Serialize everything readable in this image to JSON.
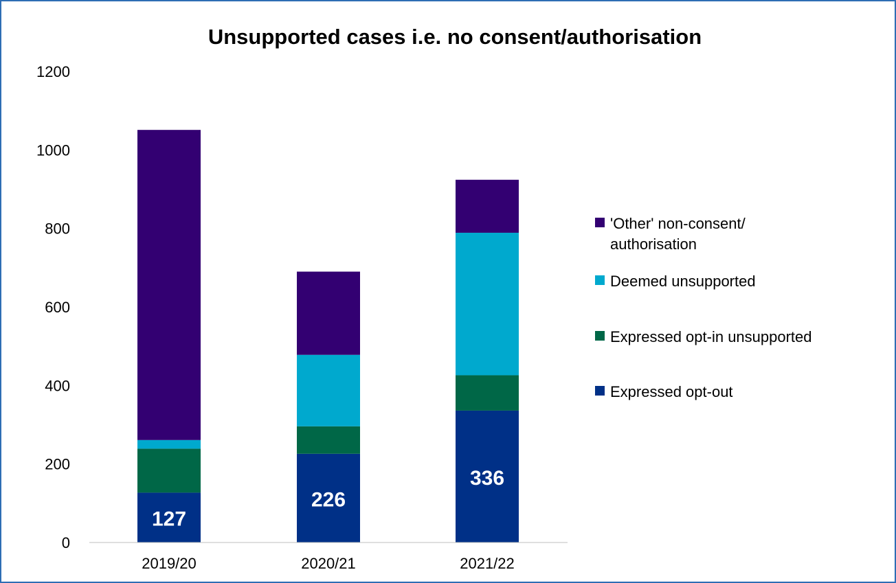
{
  "chart_data": {
    "type": "bar",
    "stacked": true,
    "title": "Unsupported cases i.e. no consent/authorisation",
    "xlabel": "",
    "ylabel": "",
    "categories": [
      "2019/20",
      "2020/21",
      "2021/22"
    ],
    "ylim": [
      0,
      1200
    ],
    "yticks": [
      0,
      200,
      400,
      600,
      800,
      1000,
      1200
    ],
    "grid": false,
    "legend_position": "right",
    "series": [
      {
        "name": "Expressed opt-out",
        "color": "#003087",
        "values": [
          127,
          226,
          336
        ],
        "show_labels": true
      },
      {
        "name": "Expressed opt-in unsupported",
        "color": "#006747",
        "values": [
          112,
          70,
          90
        ],
        "show_labels": false
      },
      {
        "name": "Deemed unsupported",
        "color": "#00A9CE",
        "values": [
          22,
          182,
          363
        ],
        "show_labels": false
      },
      {
        "name": "'Other' non-consent/ authorisation",
        "legend_lines": [
          "'Other' non-consent/",
          "authorisation"
        ],
        "color": "#330072",
        "values": [
          790,
          212,
          135
        ],
        "show_labels": false
      }
    ]
  }
}
